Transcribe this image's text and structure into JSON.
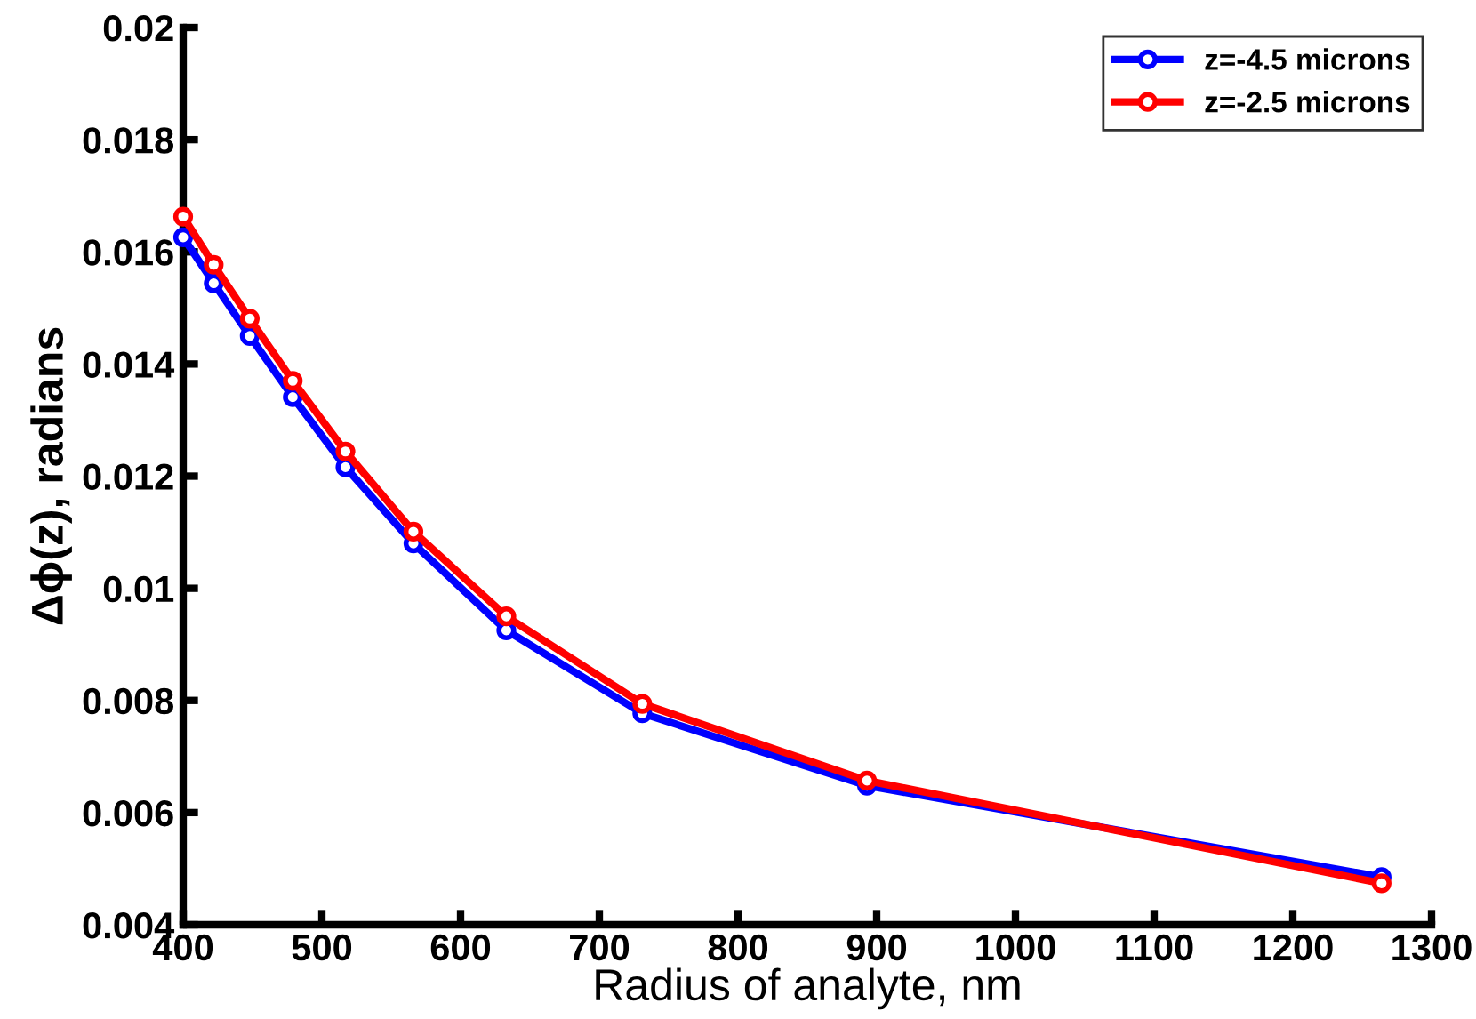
{
  "chart_data": {
    "type": "line",
    "xlabel": "Radius of analyte, nm",
    "ylabel": "Δϕ(z), radians",
    "x": [
      400,
      422,
      448,
      479,
      517,
      566,
      633,
      731,
      893,
      1264
    ],
    "series": [
      {
        "name": "z=-4.5 microns",
        "color": "#0000ff",
        "values": [
          0.01626,
          0.01544,
          0.0145,
          0.01341,
          0.01216,
          0.0108,
          0.00925,
          0.00777,
          0.00648,
          0.00485
        ]
      },
      {
        "name": "z=-2.5 microns",
        "color": "#ff0000",
        "values": [
          0.01663,
          0.01577,
          0.01481,
          0.0137,
          0.01244,
          0.01101,
          0.0095,
          0.00794,
          0.00657,
          0.00474
        ]
      }
    ],
    "xlim": [
      400,
      1300
    ],
    "xticks": [
      400,
      500,
      600,
      700,
      800,
      900,
      1000,
      1100,
      1200,
      1300
    ],
    "ylim": [
      0.004,
      0.02
    ],
    "yticks": [
      0.004,
      0.006,
      0.008,
      0.01,
      0.012,
      0.014,
      0.016,
      0.018,
      0.02
    ],
    "marker": "circle",
    "line_style": "solid",
    "legend": "top right",
    "grid": false
  }
}
